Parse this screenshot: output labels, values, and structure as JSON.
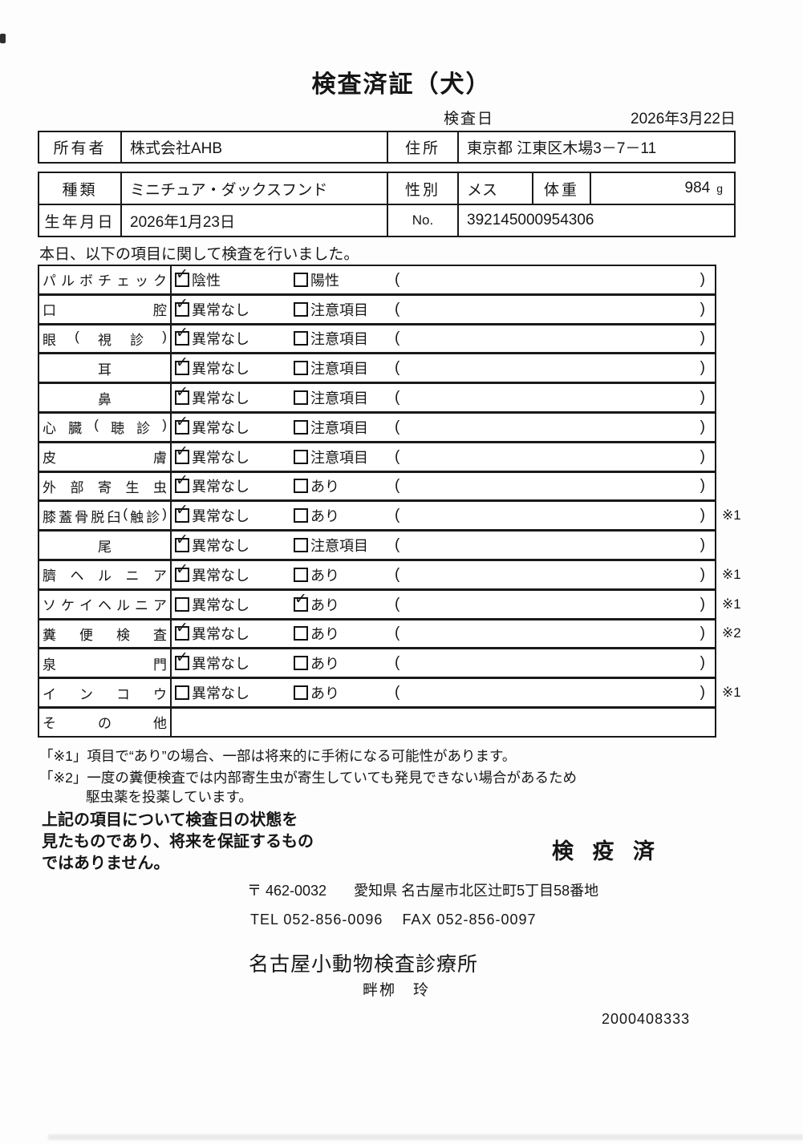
{
  "title": "検査済証（犬）",
  "inspection_date": {
    "label": "検査日",
    "value": "2026年3月22日"
  },
  "owner_table": {
    "owner_label": "所有者",
    "owner_value": "株式会社AHB",
    "address_label": "住所",
    "address_value": "東京都 江東区木場3－7－11"
  },
  "info_table": {
    "species_label": "種類",
    "species_value": "ミニチュア・ダックスフンド",
    "sex_label": "性別",
    "sex_value": "メス",
    "weight_label": "体重",
    "weight_value": "984",
    "weight_unit": "g",
    "birth_label": "生年月日",
    "birth_value": "2026年1月23日",
    "no_label": "No.",
    "no_value": "392145000954306"
  },
  "intro": "本日、以下の項目に関して検査を行いました。",
  "check_table": {
    "paren_open": "(",
    "paren_close": ")",
    "check_glyph": "✓",
    "rows": [
      {
        "label": "パルボチェック",
        "opt1": "陰性",
        "opt1_checked": true,
        "opt2": "陽性",
        "opt2_checked": false,
        "note": "",
        "has_options": true
      },
      {
        "label": "口腔",
        "opt1": "異常なし",
        "opt1_checked": true,
        "opt2": "注意項目",
        "opt2_checked": false,
        "note": "",
        "has_options": true
      },
      {
        "label": "眼(視診)",
        "opt1": "異常なし",
        "opt1_checked": true,
        "opt2": "注意項目",
        "opt2_checked": false,
        "note": "",
        "has_options": true
      },
      {
        "label": "耳",
        "opt1": "異常なし",
        "opt1_checked": true,
        "opt2": "注意項目",
        "opt2_checked": false,
        "note": "",
        "has_options": true
      },
      {
        "label": "鼻",
        "opt1": "異常なし",
        "opt1_checked": true,
        "opt2": "注意項目",
        "opt2_checked": false,
        "note": "",
        "has_options": true
      },
      {
        "label": "心臓(聴診)",
        "opt1": "異常なし",
        "opt1_checked": true,
        "opt2": "注意項目",
        "opt2_checked": false,
        "note": "",
        "has_options": true
      },
      {
        "label": "皮膚",
        "opt1": "異常なし",
        "opt1_checked": true,
        "opt2": "注意項目",
        "opt2_checked": false,
        "note": "",
        "has_options": true
      },
      {
        "label": "外部寄生虫",
        "opt1": "異常なし",
        "opt1_checked": true,
        "opt2": "あり",
        "opt2_checked": false,
        "note": "",
        "has_options": true
      },
      {
        "label": "膝蓋骨脱臼(触診)",
        "opt1": "異常なし",
        "opt1_checked": true,
        "opt2": "あり",
        "opt2_checked": false,
        "note": "※1",
        "has_options": true
      },
      {
        "label": "尾",
        "opt1": "異常なし",
        "opt1_checked": true,
        "opt2": "注意項目",
        "opt2_checked": false,
        "note": "",
        "has_options": true
      },
      {
        "label": "臍ヘルニア",
        "opt1": "異常なし",
        "opt1_checked": true,
        "opt2": "あり",
        "opt2_checked": false,
        "note": "※1",
        "has_options": true
      },
      {
        "label": "ソケイヘルニア",
        "opt1": "異常なし",
        "opt1_checked": false,
        "opt2": "あり",
        "opt2_checked": true,
        "note": "※1",
        "has_options": true
      },
      {
        "label": "糞便検査",
        "opt1": "異常なし",
        "opt1_checked": true,
        "opt2": "あり",
        "opt2_checked": false,
        "note": "※2",
        "has_options": true
      },
      {
        "label": "泉門",
        "opt1": "異常なし",
        "opt1_checked": true,
        "opt2": "あり",
        "opt2_checked": false,
        "note": "",
        "has_options": true
      },
      {
        "label": "インコウ",
        "opt1": "異常なし",
        "opt1_checked": false,
        "opt2": "あり",
        "opt2_checked": false,
        "note": "※1",
        "has_options": true
      },
      {
        "label": "その他",
        "opt1": "",
        "opt1_checked": false,
        "opt2": "",
        "opt2_checked": false,
        "note": "",
        "has_options": false
      }
    ]
  },
  "footnotes": {
    "line1": "「※1」項目で“あり”の場合、一部は将来的に手術になる可能性があります。",
    "line2": "「※2」一度の糞便検査では内部寄生虫が寄生していても発見できない場合があるため",
    "line3": "駆虫薬を投薬しています。"
  },
  "disclaimer": {
    "line1": "上記の項目について検査日の状態を",
    "line2": "見たものであり、将来を保証するもの",
    "line3": "ではありません。"
  },
  "quarantine_stamp": "検 疫 済",
  "clinic": {
    "postal": "〒 462-0032",
    "address": "愛知県 名古屋市北区辻町5丁目58番地",
    "tel": "TEL 052-856-0096",
    "fax": "FAX 052-856-0097",
    "name": "名古屋小動物検査診療所",
    "vet_name": "畔栁　玲"
  },
  "serial_number": "2000408333"
}
